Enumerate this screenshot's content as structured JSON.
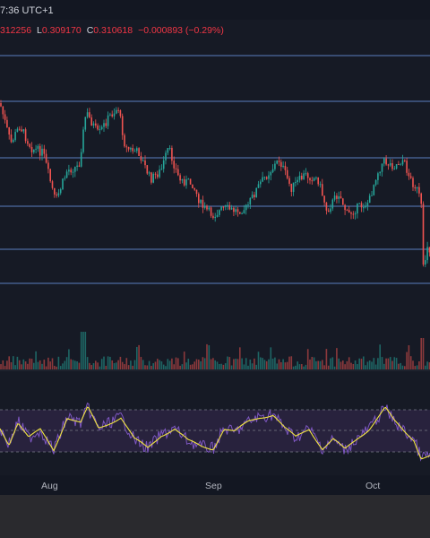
{
  "header": {
    "clock": "7:36 UTC+1"
  },
  "ohlc": {
    "open_fragment": "312256",
    "low_label": "L",
    "low": "0.309170",
    "close_label": "C",
    "close": "0.310618",
    "change": "−0.000893 (−0.29%)"
  },
  "time_axis": {
    "labels": [
      "Aug",
      "Sep",
      "Oct"
    ]
  },
  "colors": {
    "up": "#26a69a",
    "down": "#ef5350",
    "level_line": "#5b7fbf",
    "rsi": "#7e57c2",
    "rsi_ma": "#f2e640",
    "rsi_band": "#2a2440",
    "background": "#161a25"
  },
  "price_levels": {
    "count": 6
  },
  "rsi": {
    "band_upper": 70,
    "band_lower": 30
  }
}
